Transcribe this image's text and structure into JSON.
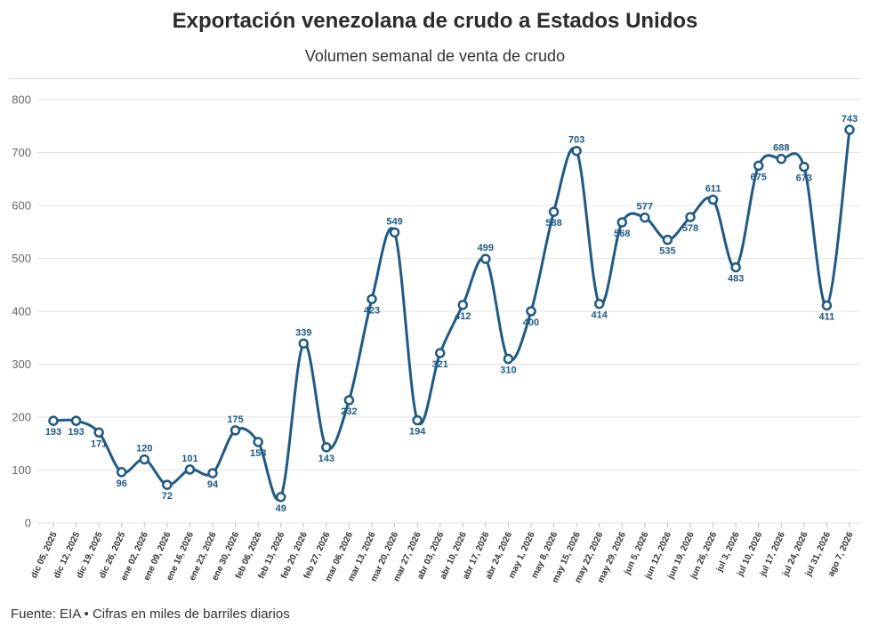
{
  "header": {
    "title": "Exportación venezolana de crudo a Estados Unidos",
    "subtitle": "Volumen semanal de venta de crudo"
  },
  "footer": {
    "source": "Fuente: EIA • Cifras en miles de barriles diarios"
  },
  "colors": {
    "line": "#1f5a84",
    "grid": "#e3e3e3"
  },
  "chart_data": {
    "type": "line",
    "title": "Exportación venezolana de crudo a Estados Unidos",
    "subtitle": "Volumen semanal de venta de crudo",
    "xlabel": "",
    "ylabel": "",
    "ylim": [
      0,
      800
    ],
    "yticks": [
      0,
      100,
      200,
      300,
      400,
      500,
      600,
      700,
      800
    ],
    "grid": true,
    "categories": [
      "dic 05, 2025",
      "dic 12, 2025",
      "dic 19, 2025",
      "dic 26, 2025",
      "ene 02, 2026",
      "ene 09, 2026",
      "ene 16, 2026",
      "ene 23, 2026",
      "ene 30, 2026",
      "feb 06, 2026",
      "feb 13, 2026",
      "feb 20, 2026",
      "feb 27, 2026",
      "mar 06, 2026",
      "mar 13, 2026",
      "mar 20, 2026",
      "mar 27, 2026",
      "abr 03, 2026",
      "abr 10, 2026",
      "abr 17, 2026",
      "abr 24, 2026",
      "may 1, 2026",
      "may 8, 2026",
      "may 15, 2026",
      "may 22, 2026",
      "may 29, 2026",
      "jun 5, 2026",
      "jun 12, 2026",
      "jun 19, 2026",
      "jun 26, 2026",
      "jul 3, 2026",
      "jul 10, 2026",
      "jul 17, 2026",
      "jul 24, 2026",
      "jul 31, 2026",
      "ago 7, 2026"
    ],
    "series": [
      {
        "values": [
          193,
          193,
          171,
          96,
          120,
          72,
          101,
          94,
          175,
          153,
          49,
          339,
          143,
          232,
          423,
          549,
          194,
          321,
          412,
          499,
          310,
          400,
          588,
          703,
          414,
          568,
          577,
          535,
          578,
          611,
          483,
          675,
          688,
          673,
          411,
          743
        ]
      }
    ]
  }
}
